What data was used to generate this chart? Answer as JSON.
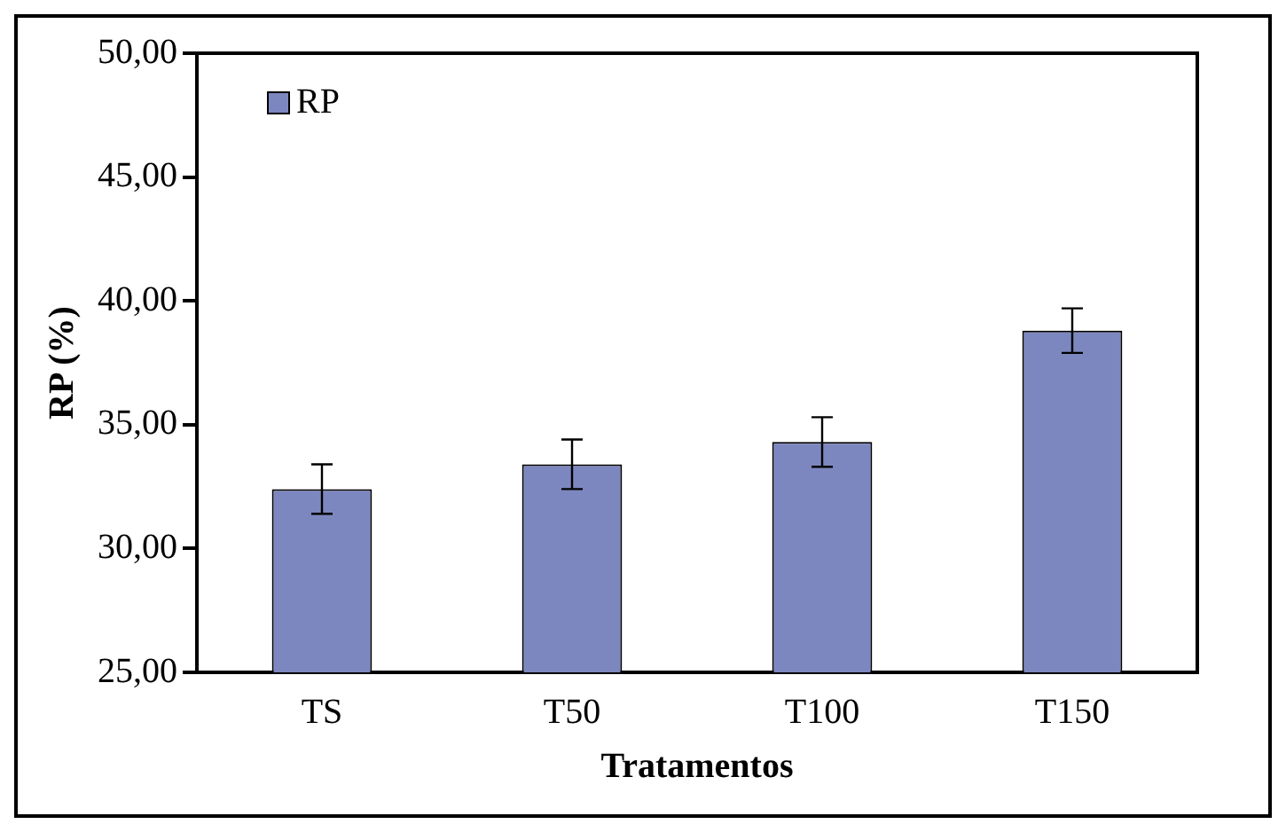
{
  "chart_data": {
    "type": "bar",
    "xlabel": "Tratamentos",
    "ylabel": "RP (%)",
    "categories": [
      "TS",
      "T50",
      "T100",
      "T150"
    ],
    "series": [
      {
        "name": "RP",
        "color": "#7d87bf",
        "values": [
          32.4,
          33.4,
          34.3,
          38.8
        ],
        "errors": [
          1.0,
          1.0,
          1.0,
          0.9
        ]
      }
    ],
    "ylim": [
      25,
      50
    ],
    "yticks": [
      {
        "value": 25,
        "label": "25,00"
      },
      {
        "value": 30,
        "label": "30,00"
      },
      {
        "value": 35,
        "label": "35,00"
      },
      {
        "value": 40,
        "label": "40,00"
      },
      {
        "value": 45,
        "label": "45,00"
      },
      {
        "value": 50,
        "label": "50,00"
      }
    ],
    "grid": false,
    "legend": "top left"
  }
}
